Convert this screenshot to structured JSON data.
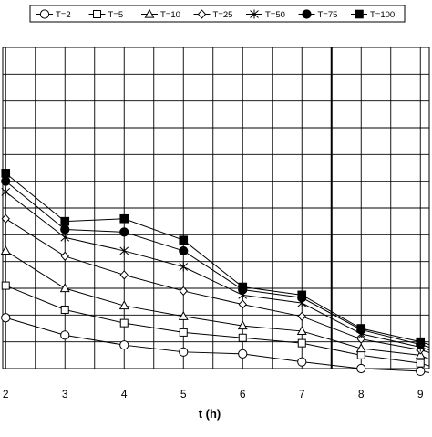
{
  "chart_data": {
    "type": "line",
    "title": "",
    "xlabel": "t (h)",
    "ylabel": "",
    "x_ticks": [
      "2",
      "3",
      "4",
      "5",
      "6",
      "7",
      "8",
      "9"
    ],
    "xlim": [
      1.95,
      9.15
    ],
    "ylim": [
      0,
      12
    ],
    "grid": true,
    "legend_position": "top",
    "series": [
      {
        "name": "T=2",
        "marker": "circle-open",
        "x": [
          2,
          3,
          4,
          5,
          6,
          7,
          8,
          9,
          9.15
        ],
        "y": [
          1.9,
          1.25,
          0.88,
          0.62,
          0.55,
          0.25,
          0.0,
          -0.1,
          -0.15
        ]
      },
      {
        "name": "T=5",
        "marker": "square-open",
        "x": [
          2,
          3,
          4,
          5,
          6,
          7,
          8,
          9,
          9.15
        ],
        "y": [
          3.1,
          2.2,
          1.7,
          1.35,
          1.15,
          0.95,
          0.5,
          0.2,
          0.1
        ]
      },
      {
        "name": "T=10",
        "marker": "triangle-open",
        "x": [
          2,
          3,
          4,
          5,
          6,
          7,
          8,
          9,
          9.15
        ],
        "y": [
          4.4,
          3.0,
          2.35,
          1.95,
          1.6,
          1.4,
          0.75,
          0.5,
          0.35
        ]
      },
      {
        "name": "T=25",
        "marker": "diamond-open",
        "x": [
          2,
          3,
          4,
          5,
          6,
          7,
          8,
          9,
          9.15
        ],
        "y": [
          5.6,
          4.2,
          3.5,
          2.9,
          2.4,
          1.95,
          1.1,
          0.7,
          0.6
        ]
      },
      {
        "name": "T=50",
        "marker": "star",
        "x": [
          2,
          3,
          4,
          5,
          6,
          7,
          8,
          9,
          9.15
        ],
        "y": [
          6.6,
          4.9,
          4.4,
          3.8,
          2.75,
          2.45,
          1.3,
          0.8,
          0.7
        ]
      },
      {
        "name": "T=75",
        "marker": "circle-filled",
        "x": [
          2,
          3,
          4,
          5,
          6,
          7,
          8,
          9,
          9.15
        ],
        "y": [
          7.0,
          5.2,
          5.1,
          4.4,
          2.95,
          2.65,
          1.45,
          0.9,
          0.8
        ]
      },
      {
        "name": "T=100",
        "marker": "square-filled",
        "x": [
          2,
          3,
          4,
          5,
          6,
          7,
          8,
          9,
          9.15
        ],
        "y": [
          7.3,
          5.5,
          5.6,
          4.8,
          3.05,
          2.75,
          1.5,
          1.0,
          0.9
        ]
      }
    ],
    "colors": {
      "line": "#000000",
      "grid": "#000000",
      "background": "#ffffff"
    }
  }
}
